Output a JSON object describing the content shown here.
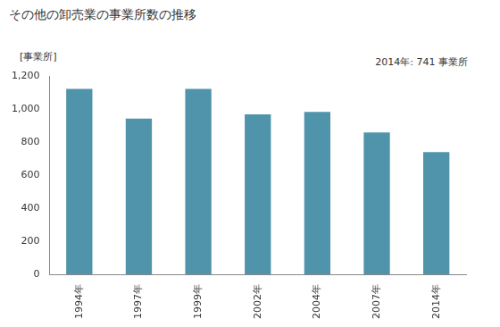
{
  "chart_data": {
    "type": "bar",
    "title": "その他の卸売業の事業所数の推移",
    "y_label": "[事業所]",
    "annotation": "2014年: 741 事業所",
    "categories": [
      "1994年",
      "1997年",
      "1999年",
      "2002年",
      "2004年",
      "2007年",
      "2014年"
    ],
    "values": [
      1125,
      945,
      1125,
      970,
      985,
      860,
      741
    ],
    "color": "#5094ac",
    "ylim": [
      0,
      1200
    ],
    "yticks": [
      0,
      200,
      400,
      600,
      800,
      {
        "value": 1000,
        "label": "1,000"
      },
      {
        "value": 1200,
        "label": "1,200"
      }
    ],
    "grid": false
  }
}
